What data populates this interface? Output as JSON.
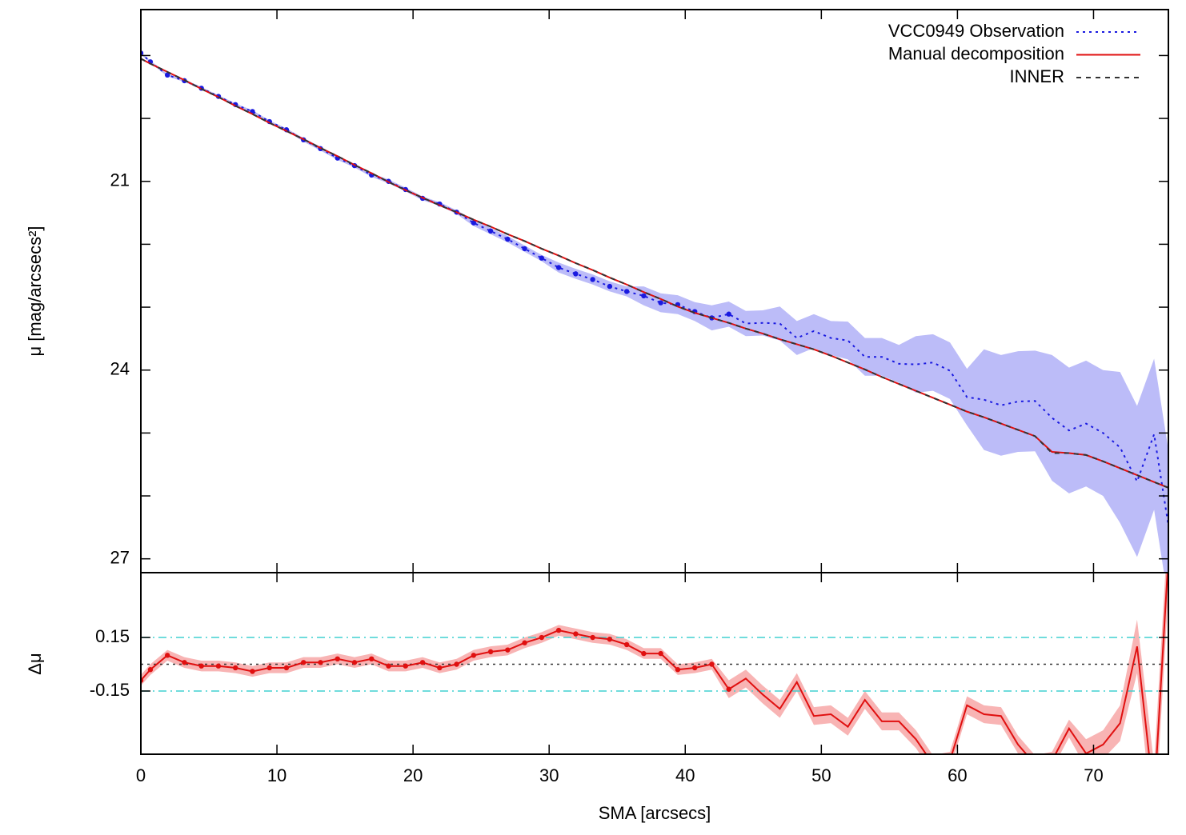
{
  "chart_data": [
    {
      "type": "line",
      "ylabel": "μ [mag/arcsecs²]",
      "xlim": [
        0,
        75.5
      ],
      "xticks": [
        0,
        10,
        20,
        30,
        40,
        50,
        60,
        70
      ],
      "ylim": [
        18.27,
        27.22
      ],
      "y_inverted": true,
      "yticks": [
        21,
        24,
        27
      ],
      "minor_yticks": [
        19,
        20,
        22,
        23,
        25,
        26
      ],
      "legend": "top-right",
      "markers_xmax": 43.2,
      "x": [
        0,
        0.7,
        1.95,
        3.2,
        4.45,
        5.7,
        6.95,
        8.2,
        9.45,
        10.7,
        11.95,
        13.2,
        14.45,
        15.7,
        16.95,
        18.2,
        19.45,
        20.7,
        21.95,
        23.2,
        24.45,
        25.7,
        26.95,
        28.2,
        29.45,
        30.7,
        31.95,
        33.2,
        34.45,
        35.7,
        36.95,
        38.2,
        39.45,
        40.7,
        41.95,
        43.2,
        44.45,
        45.7,
        46.95,
        48.2,
        49.45,
        50.7,
        51.95,
        53.2,
        54.45,
        55.7,
        56.95,
        58.2,
        59.45,
        60.7,
        61.95,
        63.2,
        64.45,
        65.7,
        66.95,
        68.2,
        69.45,
        70.7,
        71.95,
        73.2,
        74.45,
        75.5
      ],
      "series": [
        {
          "name": "VCC0949 Observation",
          "color": "#1a1ae0",
          "style": "dotted",
          "markers": true,
          "band_color": "#bcbcf8",
          "values": [
            18.96,
            19.1,
            19.31,
            19.4,
            19.52,
            19.65,
            19.78,
            19.89,
            20.05,
            20.18,
            20.34,
            20.48,
            20.63,
            20.75,
            20.9,
            21.0,
            21.13,
            21.27,
            21.36,
            21.49,
            21.66,
            21.79,
            21.92,
            22.07,
            22.22,
            22.37,
            22.47,
            22.56,
            22.67,
            22.75,
            22.82,
            22.93,
            22.96,
            23.07,
            23.17,
            23.11,
            23.26,
            23.25,
            23.26,
            23.49,
            23.38,
            23.49,
            23.53,
            23.79,
            23.79,
            23.9,
            23.91,
            23.88,
            24.01,
            24.43,
            24.47,
            24.56,
            24.5,
            24.49,
            24.76,
            24.96,
            24.85,
            25.0,
            25.23,
            25.77,
            25.02,
            26.47
          ],
          "errors": [
            0.02,
            0.02,
            0.02,
            0.02,
            0.02,
            0.02,
            0.02,
            0.02,
            0.02,
            0.02,
            0.03,
            0.03,
            0.03,
            0.03,
            0.03,
            0.03,
            0.03,
            0.03,
            0.03,
            0.03,
            0.05,
            0.05,
            0.05,
            0.05,
            0.05,
            0.08,
            0.08,
            0.08,
            0.08,
            0.08,
            0.15,
            0.15,
            0.15,
            0.15,
            0.2,
            0.2,
            0.2,
            0.2,
            0.27,
            0.27,
            0.27,
            0.27,
            0.3,
            0.3,
            0.3,
            0.3,
            0.45,
            0.45,
            0.45,
            0.45,
            0.8,
            0.8,
            0.8,
            0.8,
            1.0,
            1.0,
            1.0,
            1.0,
            1.2,
            1.2,
            1.2,
            1.2
          ]
        },
        {
          "name": "Manual decomposition",
          "color": "#e01010",
          "style": "solid",
          "values": [
            19.05,
            19.13,
            19.26,
            19.39,
            19.53,
            19.66,
            19.8,
            19.93,
            20.07,
            20.2,
            20.33,
            20.47,
            20.6,
            20.74,
            20.87,
            21.01,
            21.14,
            21.26,
            21.38,
            21.49,
            21.61,
            21.72,
            21.84,
            21.95,
            22.07,
            22.18,
            22.3,
            22.41,
            22.53,
            22.64,
            22.76,
            22.87,
            22.99,
            23.09,
            23.17,
            23.25,
            23.34,
            23.42,
            23.51,
            23.59,
            23.67,
            23.77,
            23.88,
            23.99,
            24.11,
            24.22,
            24.33,
            24.44,
            24.55,
            24.66,
            24.75,
            24.85,
            24.95,
            25.05,
            25.3,
            25.32,
            25.35,
            25.45,
            25.56,
            25.67,
            25.78,
            25.87
          ]
        },
        {
          "name": "INNER",
          "color": "#333333",
          "style": "dashed",
          "values": [
            19.05,
            19.13,
            19.26,
            19.39,
            19.53,
            19.66,
            19.8,
            19.93,
            20.07,
            20.2,
            20.33,
            20.47,
            20.6,
            20.74,
            20.87,
            21.01,
            21.14,
            21.26,
            21.38,
            21.49,
            21.61,
            21.72,
            21.84,
            21.95,
            22.07,
            22.18,
            22.3,
            22.41,
            22.53,
            22.64,
            22.76,
            22.87,
            22.99,
            23.09,
            23.17,
            23.25,
            23.34,
            23.42,
            23.51,
            23.59,
            23.67,
            23.77,
            23.88,
            23.99,
            24.11,
            24.22,
            24.33,
            24.44,
            24.55,
            24.66,
            24.75,
            24.85,
            24.95,
            25.05,
            25.32,
            25.32,
            25.35,
            25.45,
            25.56,
            25.67,
            25.78,
            25.87
          ]
        }
      ]
    },
    {
      "type": "line",
      "ylabel": "Δμ",
      "xlabel": "SMA [arcsecs]",
      "xlim": [
        0,
        75.5
      ],
      "xticks": [
        0,
        10,
        20,
        30,
        40,
        50,
        60,
        70
      ],
      "ylim": [
        -0.504,
        0.513
      ],
      "yticks": [
        0.15,
        -0.15
      ],
      "hlines": [
        0.15,
        -0.15,
        0
      ],
      "hline_colors": [
        "#40d0d0",
        "#40d0d0",
        "#333333"
      ],
      "hline_styles": [
        "dashdot",
        "dashdot",
        "dotted"
      ],
      "markers_xmax": 43.2,
      "x": [
        0,
        0.7,
        1.95,
        3.2,
        4.45,
        5.7,
        6.95,
        8.2,
        9.45,
        10.7,
        11.95,
        13.2,
        14.45,
        15.7,
        16.95,
        18.2,
        19.45,
        20.7,
        21.95,
        23.2,
        24.45,
        25.7,
        26.95,
        28.2,
        29.45,
        30.7,
        31.95,
        33.2,
        34.45,
        35.7,
        36.95,
        38.2,
        39.45,
        40.7,
        41.95,
        43.2,
        44.45,
        45.7,
        46.95,
        48.2,
        49.45,
        50.7,
        51.95,
        53.2,
        54.45,
        55.7,
        56.95,
        58.2,
        59.45,
        60.7,
        61.95,
        63.2,
        64.45,
        65.7,
        66.95,
        68.2,
        69.45,
        70.7,
        71.95,
        73.2,
        74.45,
        75.5
      ],
      "series": [
        {
          "color": "#e01010",
          "style": "solid",
          "markers": true,
          "band_color": "#f8b4b4",
          "values": [
            -0.09,
            -0.03,
            0.05,
            0.01,
            -0.01,
            -0.01,
            -0.02,
            -0.04,
            -0.02,
            -0.02,
            0.01,
            0.01,
            0.03,
            0.01,
            0.03,
            -0.01,
            -0.01,
            0.01,
            -0.02,
            0.0,
            0.05,
            0.07,
            0.08,
            0.12,
            0.15,
            0.19,
            0.17,
            0.15,
            0.14,
            0.11,
            0.06,
            0.06,
            -0.03,
            -0.02,
            0.0,
            -0.14,
            -0.08,
            -0.17,
            -0.25,
            -0.1,
            -0.29,
            -0.28,
            -0.35,
            -0.2,
            -0.32,
            -0.32,
            -0.42,
            -0.56,
            -0.54,
            -0.23,
            -0.28,
            -0.29,
            -0.45,
            -0.56,
            -0.54,
            -0.36,
            -0.5,
            -0.45,
            -0.33,
            0.1,
            -0.76,
            0.6
          ],
          "errors": [
            0.03,
            0.03,
            0.03,
            0.03,
            0.03,
            0.03,
            0.03,
            0.03,
            0.03,
            0.03,
            0.03,
            0.03,
            0.03,
            0.03,
            0.03,
            0.03,
            0.03,
            0.03,
            0.03,
            0.03,
            0.03,
            0.03,
            0.03,
            0.03,
            0.03,
            0.03,
            0.03,
            0.03,
            0.03,
            0.03,
            0.03,
            0.03,
            0.03,
            0.03,
            0.03,
            0.05,
            0.05,
            0.05,
            0.05,
            0.05,
            0.05,
            0.05,
            0.05,
            0.05,
            0.05,
            0.05,
            0.05,
            0.05,
            0.05,
            0.05,
            0.05,
            0.05,
            0.05,
            0.05,
            0.05,
            0.05,
            0.08,
            0.08,
            0.1,
            0.15,
            0.2,
            0.2
          ]
        }
      ]
    }
  ]
}
